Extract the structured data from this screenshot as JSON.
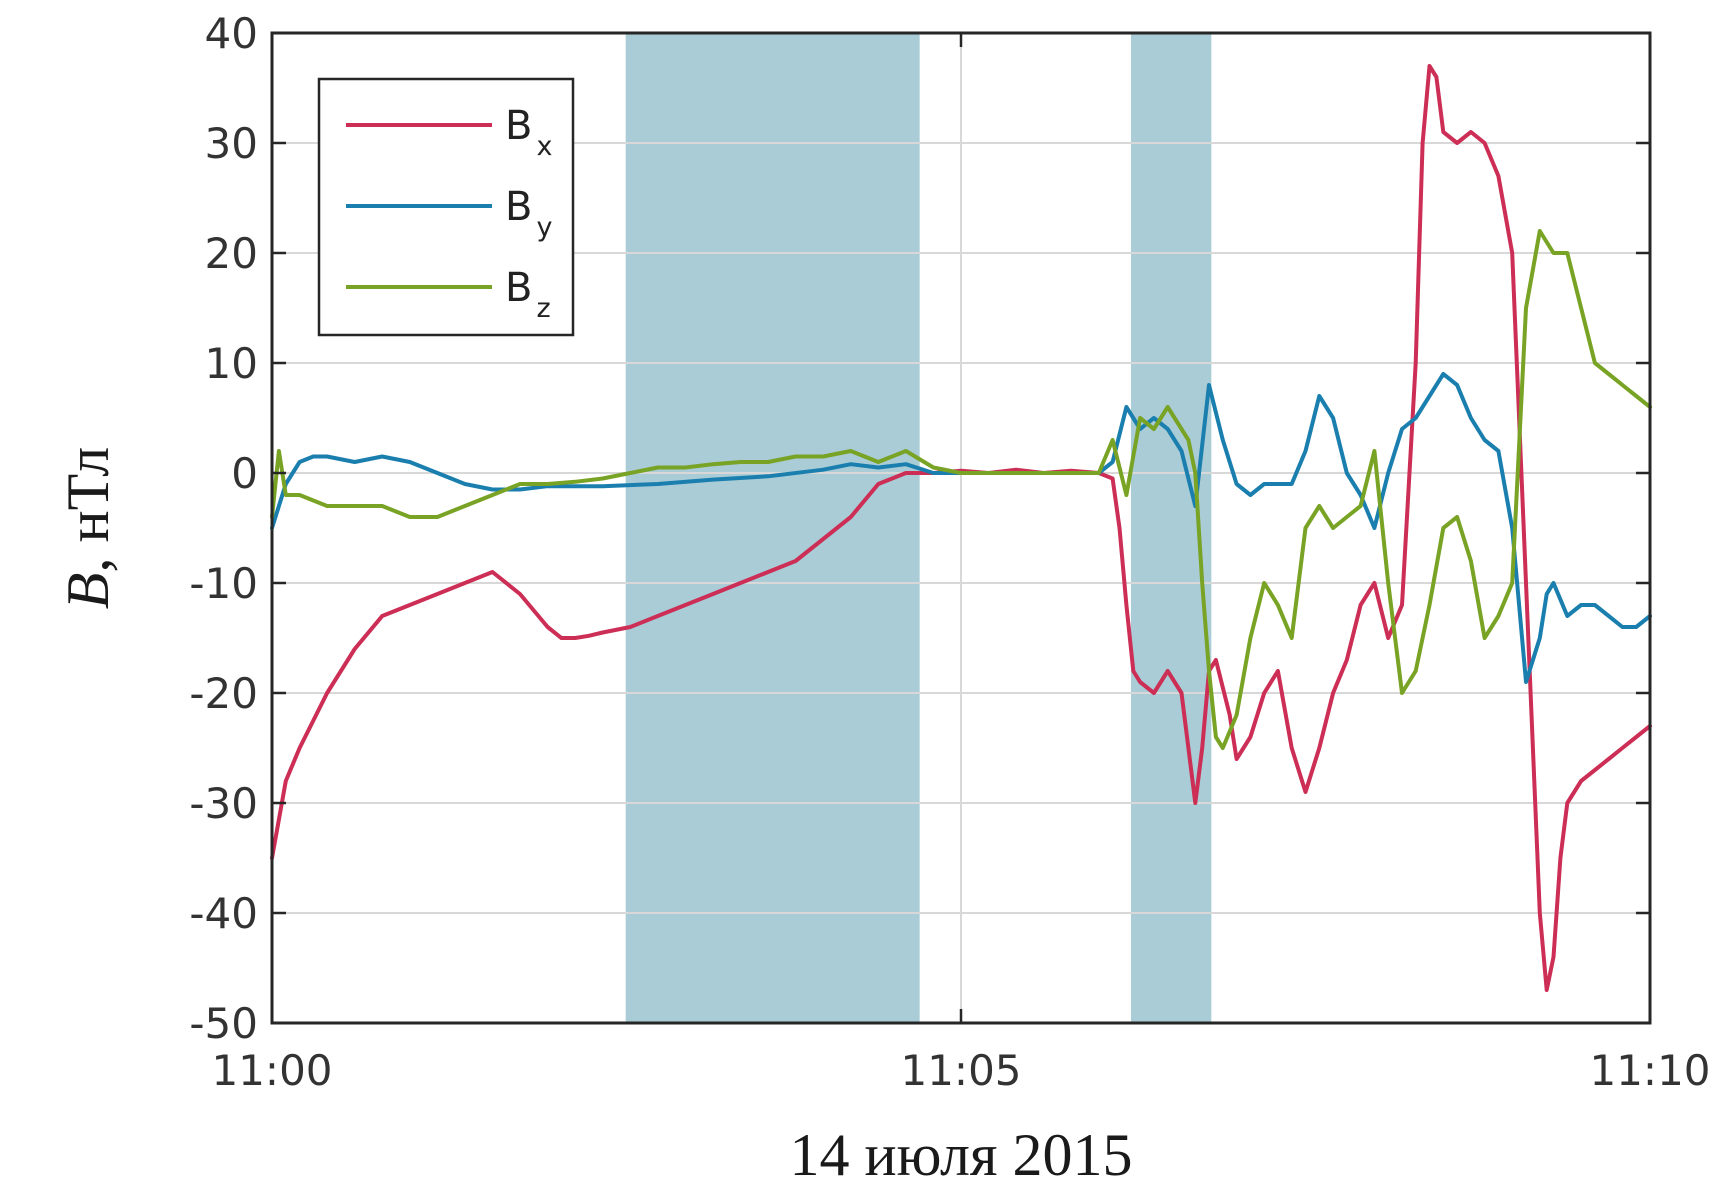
{
  "chart_data": {
    "type": "line",
    "title": "",
    "xlabel": "14 июля 2015",
    "ylabel": {
      "var": "B",
      "sep": ",",
      "unit": "нТл"
    },
    "xlim": [
      "11:00",
      "11:10"
    ],
    "ylim": [
      -50,
      40
    ],
    "xticks": [
      "11:00",
      "11:05",
      "11:10"
    ],
    "yticks": [
      "40",
      "30",
      "20",
      "10",
      "0",
      "-10",
      "-20",
      "-30",
      "-40",
      "-50"
    ],
    "grid": true,
    "legend_position": "top-left",
    "shaded_intervals": [
      [
        "11:02:34",
        "11:04:42"
      ],
      [
        "11:06:14",
        "11:06:49"
      ]
    ],
    "colors": {
      "shade": "#a9ccd6",
      "Bx": "#cc2e55",
      "By": "#1a7fae",
      "Bz": "#79a325"
    },
    "series": [
      {
        "name": "Bx",
        "legend": {
          "main": "B",
          "sub": "x"
        },
        "x": [
          "11:00:00",
          "11:00:06",
          "11:00:12",
          "11:00:24",
          "11:00:36",
          "11:00:48",
          "11:01:00",
          "11:01:12",
          "11:01:24",
          "11:01:36",
          "11:01:48",
          "11:02:00",
          "11:02:06",
          "11:02:12",
          "11:02:18",
          "11:02:24",
          "11:02:36",
          "11:02:48",
          "11:03:00",
          "11:03:12",
          "11:03:24",
          "11:03:36",
          "11:03:48",
          "11:04:00",
          "11:04:12",
          "11:04:24",
          "11:04:36",
          "11:04:42",
          "11:04:48",
          "11:05:00",
          "11:05:12",
          "11:05:24",
          "11:05:36",
          "11:05:48",
          "11:06:00",
          "11:06:06",
          "11:06:09",
          "11:06:12",
          "11:06:15",
          "11:06:18",
          "11:06:21",
          "11:06:24",
          "11:06:30",
          "11:06:36",
          "11:06:42",
          "11:06:45",
          "11:06:48",
          "11:06:51",
          "11:06:57",
          "11:07:00",
          "11:07:03",
          "11:07:06",
          "11:07:12",
          "11:07:18",
          "11:07:24",
          "11:07:30",
          "11:07:36",
          "11:07:42",
          "11:07:48",
          "11:07:54",
          "11:08:00",
          "11:08:06",
          "11:08:12",
          "11:08:18",
          "11:08:21",
          "11:08:24",
          "11:08:27",
          "11:08:30",
          "11:08:36",
          "11:08:42",
          "11:08:48",
          "11:08:54",
          "11:09:00",
          "11:09:06",
          "11:09:12",
          "11:09:15",
          "11:09:18",
          "11:09:21",
          "11:09:24",
          "11:09:27",
          "11:09:30",
          "11:09:36",
          "11:09:42",
          "11:09:48",
          "11:09:54",
          "11:10:00"
        ],
        "y": [
          -35,
          -28,
          -25,
          -20,
          -16,
          -13,
          -12,
          -11,
          -10,
          -9,
          -11,
          -14,
          -15,
          -15,
          -14.8,
          -14.5,
          -14,
          -13,
          -12,
          -11,
          -10,
          -9,
          -8,
          -6,
          -4,
          -1,
          0,
          0,
          0,
          0.2,
          0,
          0.3,
          0,
          0.2,
          0,
          -0.5,
          -5,
          -12,
          -18,
          -19,
          -19.5,
          -20,
          -18,
          -20,
          -30,
          -25,
          -18,
          -17,
          -22,
          -26,
          -25,
          -24,
          -20,
          -18,
          -25,
          -29,
          -25,
          -20,
          -17,
          -12,
          -10,
          -15,
          -12,
          10,
          30,
          37,
          36,
          31,
          30,
          31,
          30,
          27,
          20,
          -10,
          -40,
          -47,
          -44,
          -35,
          -30,
          -29,
          -28,
          -27,
          -26,
          -25,
          -24,
          -23
        ]
      },
      {
        "name": "By",
        "legend": {
          "main": "B",
          "sub": "y"
        },
        "x": [
          "11:00:00",
          "11:00:06",
          "11:00:12",
          "11:00:18",
          "11:00:24",
          "11:00:36",
          "11:00:48",
          "11:01:00",
          "11:01:12",
          "11:01:24",
          "11:01:36",
          "11:01:48",
          "11:02:00",
          "11:02:24",
          "11:02:48",
          "11:03:12",
          "11:03:36",
          "11:04:00",
          "11:04:12",
          "11:04:24",
          "11:04:36",
          "11:04:48",
          "11:05:00",
          "11:05:24",
          "11:05:48",
          "11:06:00",
          "11:06:06",
          "11:06:12",
          "11:06:15",
          "11:06:18",
          "11:06:24",
          "11:06:30",
          "11:06:36",
          "11:06:42",
          "11:06:48",
          "11:06:54",
          "11:07:00",
          "11:07:06",
          "11:07:12",
          "11:07:18",
          "11:07:24",
          "11:07:30",
          "11:07:36",
          "11:07:42",
          "11:07:48",
          "11:07:54",
          "11:08:00",
          "11:08:06",
          "11:08:12",
          "11:08:18",
          "11:08:24",
          "11:08:30",
          "11:08:36",
          "11:08:42",
          "11:08:48",
          "11:08:54",
          "11:09:00",
          "11:09:06",
          "11:09:12",
          "11:09:15",
          "11:09:18",
          "11:09:24",
          "11:09:30",
          "11:09:36",
          "11:09:42",
          "11:09:48",
          "11:09:54",
          "11:10:00"
        ],
        "y": [
          -5,
          -1,
          1,
          1.5,
          1.5,
          1,
          1.5,
          1,
          0,
          -1,
          -1.5,
          -1.5,
          -1.2,
          -1.2,
          -1,
          -0.6,
          -0.3,
          0.3,
          0.8,
          0.5,
          0.8,
          0,
          0,
          0,
          0,
          0,
          1,
          6,
          5,
          4,
          5,
          4,
          2,
          -3,
          8,
          3,
          -1,
          -2,
          -1,
          -1,
          -1,
          2,
          7,
          5,
          0,
          -2,
          -5,
          0,
          4,
          5,
          7,
          9,
          8,
          5,
          3,
          2,
          -5,
          -19,
          -15,
          -11,
          -10,
          -13,
          -12,
          -12,
          -13,
          -14,
          -14,
          -13
        ]
      },
      {
        "name": "Bz",
        "legend": {
          "main": "B",
          "sub": "z"
        },
        "x": [
          "11:00:00",
          "11:00:03",
          "11:00:06",
          "11:00:12",
          "11:00:24",
          "11:00:36",
          "11:00:48",
          "11:01:00",
          "11:01:12",
          "11:01:24",
          "11:01:36",
          "11:01:48",
          "11:02:00",
          "11:02:12",
          "11:02:24",
          "11:02:36",
          "11:02:48",
          "11:03:00",
          "11:03:12",
          "11:03:24",
          "11:03:36",
          "11:03:48",
          "11:04:00",
          "11:04:12",
          "11:04:24",
          "11:04:36",
          "11:04:48",
          "11:05:00",
          "11:05:24",
          "11:05:48",
          "11:06:00",
          "11:06:06",
          "11:06:12",
          "11:06:18",
          "11:06:24",
          "11:06:30",
          "11:06:36",
          "11:06:39",
          "11:06:42",
          "11:06:45",
          "11:06:48",
          "11:06:51",
          "11:06:54",
          "11:07:00",
          "11:07:06",
          "11:07:12",
          "11:07:18",
          "11:07:24",
          "11:07:30",
          "11:07:36",
          "11:07:42",
          "11:07:48",
          "11:07:54",
          "11:08:00",
          "11:08:06",
          "11:08:12",
          "11:08:18",
          "11:08:24",
          "11:08:30",
          "11:08:36",
          "11:08:42",
          "11:08:48",
          "11:08:54",
          "11:09:00",
          "11:09:06",
          "11:09:12",
          "11:09:18",
          "11:09:24",
          "11:09:30",
          "11:09:36",
          "11:09:42",
          "11:09:48",
          "11:09:54",
          "11:10:00"
        ],
        "y": [
          -4,
          2,
          -2,
          -2,
          -3,
          -3,
          -3,
          -4,
          -4,
          -3,
          -2,
          -1,
          -1,
          -0.8,
          -0.5,
          0,
          0.5,
          0.5,
          0.8,
          1,
          1,
          1.5,
          1.5,
          2,
          1,
          2,
          0.5,
          0,
          0,
          0,
          0,
          3,
          -2,
          5,
          4,
          6,
          4,
          3,
          0,
          -10,
          -18,
          -24,
          -25,
          -22,
          -15,
          -10,
          -12,
          -15,
          -5,
          -3,
          -5,
          -4,
          -3,
          2,
          -10,
          -20,
          -18,
          -12,
          -5,
          -4,
          -8,
          -15,
          -13,
          -10,
          15,
          22,
          20,
          20,
          15,
          10,
          9,
          8,
          7,
          6
        ]
      }
    ]
  }
}
